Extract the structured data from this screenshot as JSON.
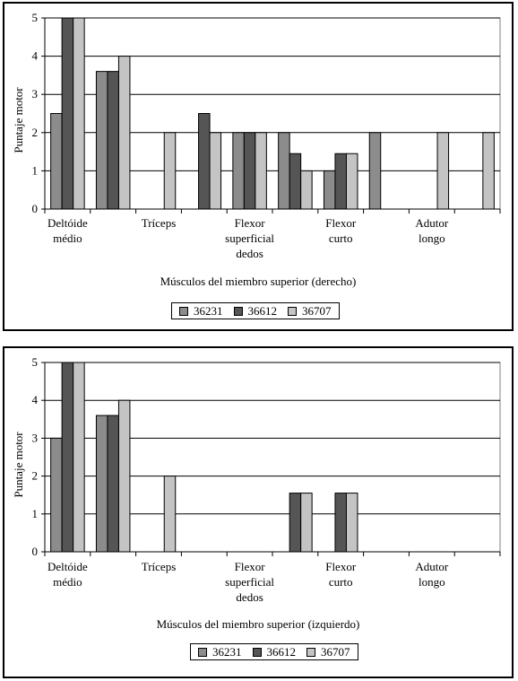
{
  "chart_data": [
    {
      "type": "bar",
      "title": "",
      "xlabel": "Músculos del miembro superior (derecho)",
      "ylabel": "Puntaje motor",
      "ylim": [
        0,
        5
      ],
      "yticks": [
        "0",
        "1",
        "2",
        "3",
        "4",
        "5"
      ],
      "grid": true,
      "legend_position": "bottom",
      "categories": [
        "Deltóide médio",
        "",
        "Tríceps",
        "",
        "Flexor superficial dedos",
        "",
        "Flexor curto",
        "",
        "Adutor longo",
        ""
      ],
      "category_label_lines": [
        [
          "Deltóide",
          "médio"
        ],
        [],
        [
          "Tríceps"
        ],
        [],
        [
          "Flexor",
          "superficial",
          "dedos"
        ],
        [],
        [
          "Flexor",
          "curto"
        ],
        [],
        [
          "Adutor",
          "longo"
        ],
        []
      ],
      "series": [
        {
          "name": "36231",
          "color": "#8c8c8c",
          "values": [
            2.5,
            3.6,
            0,
            0,
            2,
            2,
            1,
            2,
            0,
            0
          ]
        },
        {
          "name": "36612",
          "color": "#555555",
          "values": [
            5,
            3.6,
            0,
            2.5,
            2,
            1.45,
            1.45,
            0,
            0,
            0
          ]
        },
        {
          "name": "36707",
          "color": "#c4c4c4",
          "values": [
            5,
            4,
            2,
            2,
            2,
            1,
            1.45,
            0,
            2,
            2
          ]
        }
      ]
    },
    {
      "type": "bar",
      "title": "",
      "xlabel": "Músculos del miembro superior (izquierdo)",
      "ylabel": "Puntaje motor",
      "ylim": [
        0,
        5
      ],
      "yticks": [
        "0",
        "1",
        "2",
        "3",
        "4",
        "5"
      ],
      "grid": true,
      "legend_position": "bottom",
      "categories": [
        "Deltóide médio",
        "",
        "Tríceps",
        "",
        "Flexor superficial dedos",
        "",
        "Flexor curto",
        "",
        "Adutor longo",
        ""
      ],
      "category_label_lines": [
        [
          "Deltóide",
          "médio"
        ],
        [],
        [
          "Tríceps"
        ],
        [],
        [
          "Flexor",
          "superficial",
          "dedos"
        ],
        [],
        [
          "Flexor",
          "curto"
        ],
        [],
        [
          "Adutor",
          "longo"
        ],
        []
      ],
      "series": [
        {
          "name": "36231",
          "color": "#8c8c8c",
          "values": [
            3,
            3.6,
            0,
            0,
            0,
            0,
            0,
            0,
            0,
            0
          ]
        },
        {
          "name": "36612",
          "color": "#555555",
          "values": [
            5,
            3.6,
            0,
            0,
            0,
            1.55,
            1.55,
            0,
            0,
            0
          ]
        },
        {
          "name": "36707",
          "color": "#c4c4c4",
          "values": [
            5,
            4,
            2,
            0,
            0,
            1.55,
            1.55,
            0,
            0,
            0
          ]
        }
      ]
    }
  ]
}
